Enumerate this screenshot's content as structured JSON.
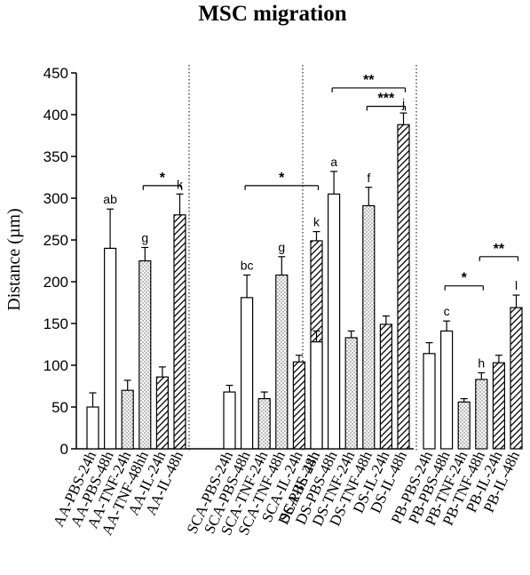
{
  "chart_data": {
    "type": "bar",
    "title": "MSC migration",
    "ylabel": "Distance (µm)",
    "ylim": [
      0,
      450
    ],
    "yticks": [
      0,
      50,
      100,
      150,
      200,
      250,
      300,
      350,
      400,
      450
    ],
    "categories": [
      "AA-PBS-24h",
      "AA-PBS-48h",
      "AA-TNF-24h",
      "AA-TNF-48hh",
      "AA-IL-24h",
      "AA-IL-48h",
      "SCA-PBS-24h",
      "SCA-PBS-48h",
      "SCA-TNF-24h",
      "SCA-TNF-48h",
      "SCA-IL-24h",
      "SCA-IL-48h",
      "DS-PBS-24h",
      "DS-PBS-48h",
      "DS-TNF-24h",
      "DS-TNF-48h",
      "DS-IL-24h",
      "DS-IL-48h",
      "PB-PBS-24h",
      "PB-PBS-48h",
      "PB-TNF-24h",
      "PB-TNF-48h",
      "PB-IL-24h",
      "PB-IL-48h"
    ],
    "values": [
      50,
      240,
      70,
      225,
      86,
      280,
      68,
      181,
      60,
      208,
      104,
      249,
      128,
      305,
      133,
      291,
      149,
      388,
      114,
      141,
      56,
      83,
      103,
      169
    ],
    "errors": [
      17,
      47,
      12,
      16,
      12,
      25,
      8,
      27,
      8,
      22,
      8,
      11,
      13,
      27,
      8,
      22,
      10,
      14,
      13,
      12,
      4,
      8,
      9,
      15
    ],
    "fills": [
      "white",
      "white",
      "dots",
      "dots",
      "hatch",
      "hatch",
      "white",
      "white",
      "dots",
      "dots",
      "hatch",
      "hatch",
      "white",
      "white",
      "dots",
      "dots",
      "hatch",
      "hatch",
      "white",
      "white",
      "dots",
      "dots",
      "hatch",
      "hatch"
    ],
    "group_labels_above": [
      "",
      "ab",
      "",
      "g",
      "",
      "k",
      "",
      "bc",
      "",
      "g",
      "",
      "k",
      "",
      "a",
      "",
      "f",
      "",
      "j",
      "",
      "c",
      "",
      "h",
      "",
      "l"
    ],
    "significance": [
      {
        "from": 3,
        "to": 5,
        "level": 315,
        "label": "*"
      },
      {
        "from": 7,
        "to": 11,
        "level": 315,
        "label": "*"
      },
      {
        "from": 13,
        "to": 17,
        "level": 432,
        "label": "**"
      },
      {
        "from": 15,
        "to": 17,
        "level": 410,
        "label": "***"
      },
      {
        "from": 19,
        "to": 21,
        "level": 195,
        "label": "*"
      },
      {
        "from": 21,
        "to": 23,
        "level": 230,
        "label": "**"
      }
    ]
  }
}
